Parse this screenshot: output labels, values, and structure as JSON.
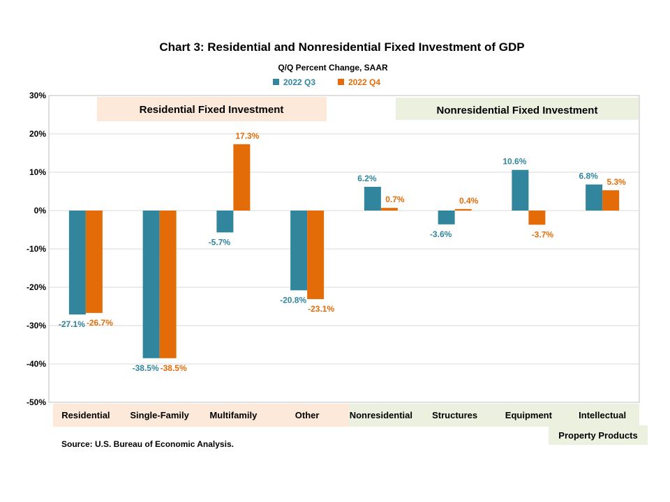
{
  "chart_data": {
    "type": "bar",
    "title": "Chart 3: Residential and Nonresidential  Fixed Investment of GDP",
    "subtitle": "Q/Q Percent Change, SAAR",
    "categories": [
      "Residential",
      "Single-Family",
      "Multifamily",
      "Other",
      "Nonresidential",
      "Structures",
      "Equipment",
      "Intellectual"
    ],
    "category_extra_line": "Property Products",
    "series": [
      {
        "name": "2022 Q3",
        "color": "#31859C",
        "values": [
          -27.1,
          -38.5,
          -5.7,
          -20.8,
          6.2,
          -3.6,
          10.6,
          6.8
        ]
      },
      {
        "name": "2022 Q4",
        "color": "#E36C09",
        "values": [
          -26.7,
          -38.5,
          17.3,
          -23.1,
          0.7,
          0.4,
          -3.7,
          5.3
        ]
      }
    ],
    "data_labels": {
      "2022 Q3": [
        "-27.1%",
        "-38.5%",
        "-5.7%",
        "-20.8%",
        "6.2%",
        "-3.6%",
        "10.6%",
        "6.8%"
      ],
      "2022 Q4": [
        "-26.7%",
        "-38.5%",
        "17.3%",
        "-23.1%",
        "0.7%",
        "0.4%",
        "-3.7%",
        "5.3%"
      ]
    },
    "y_ticks": [
      "30%",
      "20%",
      "10%",
      "0%",
      "-10%",
      "-20%",
      "-30%",
      "-40%",
      "-50%"
    ],
    "ylim": [
      -50,
      30
    ],
    "grid": true,
    "legend_position": "top",
    "section_labels": {
      "residential": "Residential Fixed Investment",
      "nonresidential": "Nonresidential Fixed Investment"
    },
    "section_colors": {
      "residential": "#FDE9D9",
      "nonresidential": "#EBF1DE"
    },
    "source": "Source: U.S. Bureau of Economic Analysis."
  }
}
